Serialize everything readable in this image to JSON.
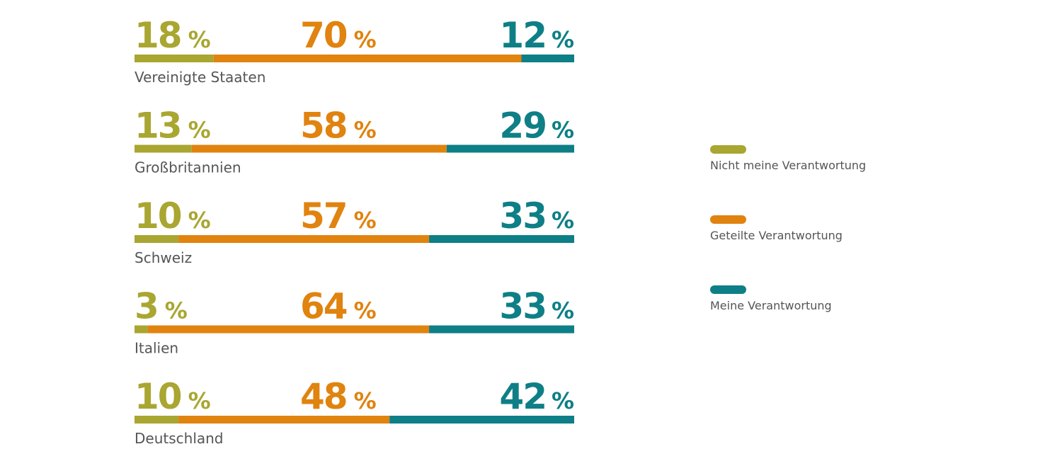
{
  "chart_data": {
    "type": "stacked-bar-100",
    "categories": [
      "Vereinigte Staaten",
      "Großbritannien",
      "Schweiz",
      "Italien",
      "Deutschland"
    ],
    "unit": "%",
    "series": [
      {
        "name": "Nicht meine Verantwortung",
        "color": "#a9a631",
        "values": [
          18,
          13,
          10,
          3,
          10
        ]
      },
      {
        "name": "Geteilte Verantwortung",
        "color": "#e0830f",
        "values": [
          70,
          58,
          57,
          64,
          48
        ]
      },
      {
        "name": "Meine Verantwortung",
        "color": "#0e7f86",
        "values": [
          12,
          29,
          33,
          33,
          42
        ]
      }
    ],
    "xlim": [
      0,
      100
    ]
  }
}
